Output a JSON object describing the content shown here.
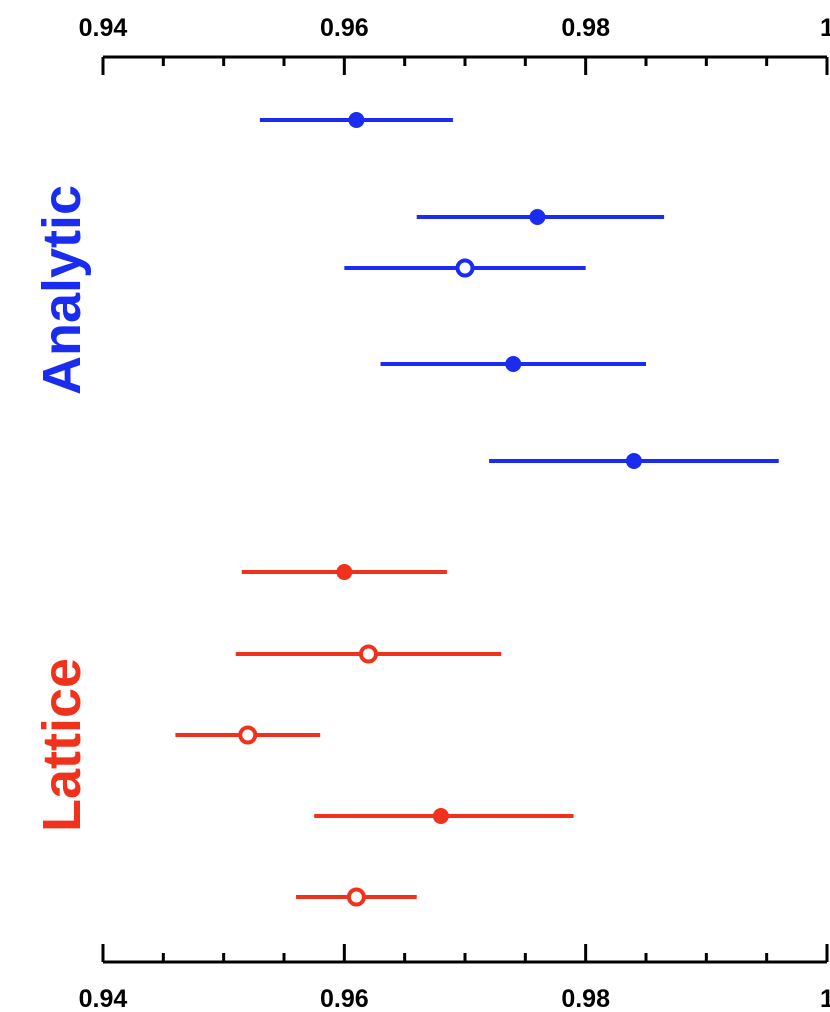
{
  "chart_data": {
    "type": "scatter",
    "subtype": "forest-plot-error-bars",
    "title": "",
    "xlabel": "",
    "ylabel": "",
    "xlim": [
      0.94,
      1.0
    ],
    "x_ticks_major": [
      0.94,
      0.96,
      0.98,
      1.0
    ],
    "x_tick_labels": [
      "0.94",
      "0.96",
      "0.98",
      "1"
    ],
    "x_ticks_minor_step": 0.005,
    "grid": false,
    "axis_position": [
      "top",
      "bottom"
    ],
    "groups": [
      {
        "name": "Analytic",
        "color": "#1a2cf0",
        "points": [
          {
            "value": 0.961,
            "low": 0.953,
            "high": 0.969,
            "marker": "filled"
          },
          {
            "value": 0.976,
            "low": 0.966,
            "high": 0.9865,
            "marker": "filled"
          },
          {
            "value": 0.97,
            "low": 0.96,
            "high": 0.98,
            "marker": "open"
          },
          {
            "value": 0.974,
            "low": 0.963,
            "high": 0.985,
            "marker": "filled"
          },
          {
            "value": 0.984,
            "low": 0.972,
            "high": 0.996,
            "marker": "filled"
          }
        ]
      },
      {
        "name": "Lattice",
        "color": "#f0321c",
        "points": [
          {
            "value": 0.96,
            "low": 0.9515,
            "high": 0.9685,
            "marker": "filled"
          },
          {
            "value": 0.962,
            "low": 0.951,
            "high": 0.973,
            "marker": "open"
          },
          {
            "value": 0.952,
            "low": 0.946,
            "high": 0.958,
            "marker": "open"
          },
          {
            "value": 0.968,
            "low": 0.9575,
            "high": 0.979,
            "marker": "filled"
          },
          {
            "value": 0.961,
            "low": 0.956,
            "high": 0.966,
            "marker": "open"
          }
        ]
      }
    ]
  }
}
